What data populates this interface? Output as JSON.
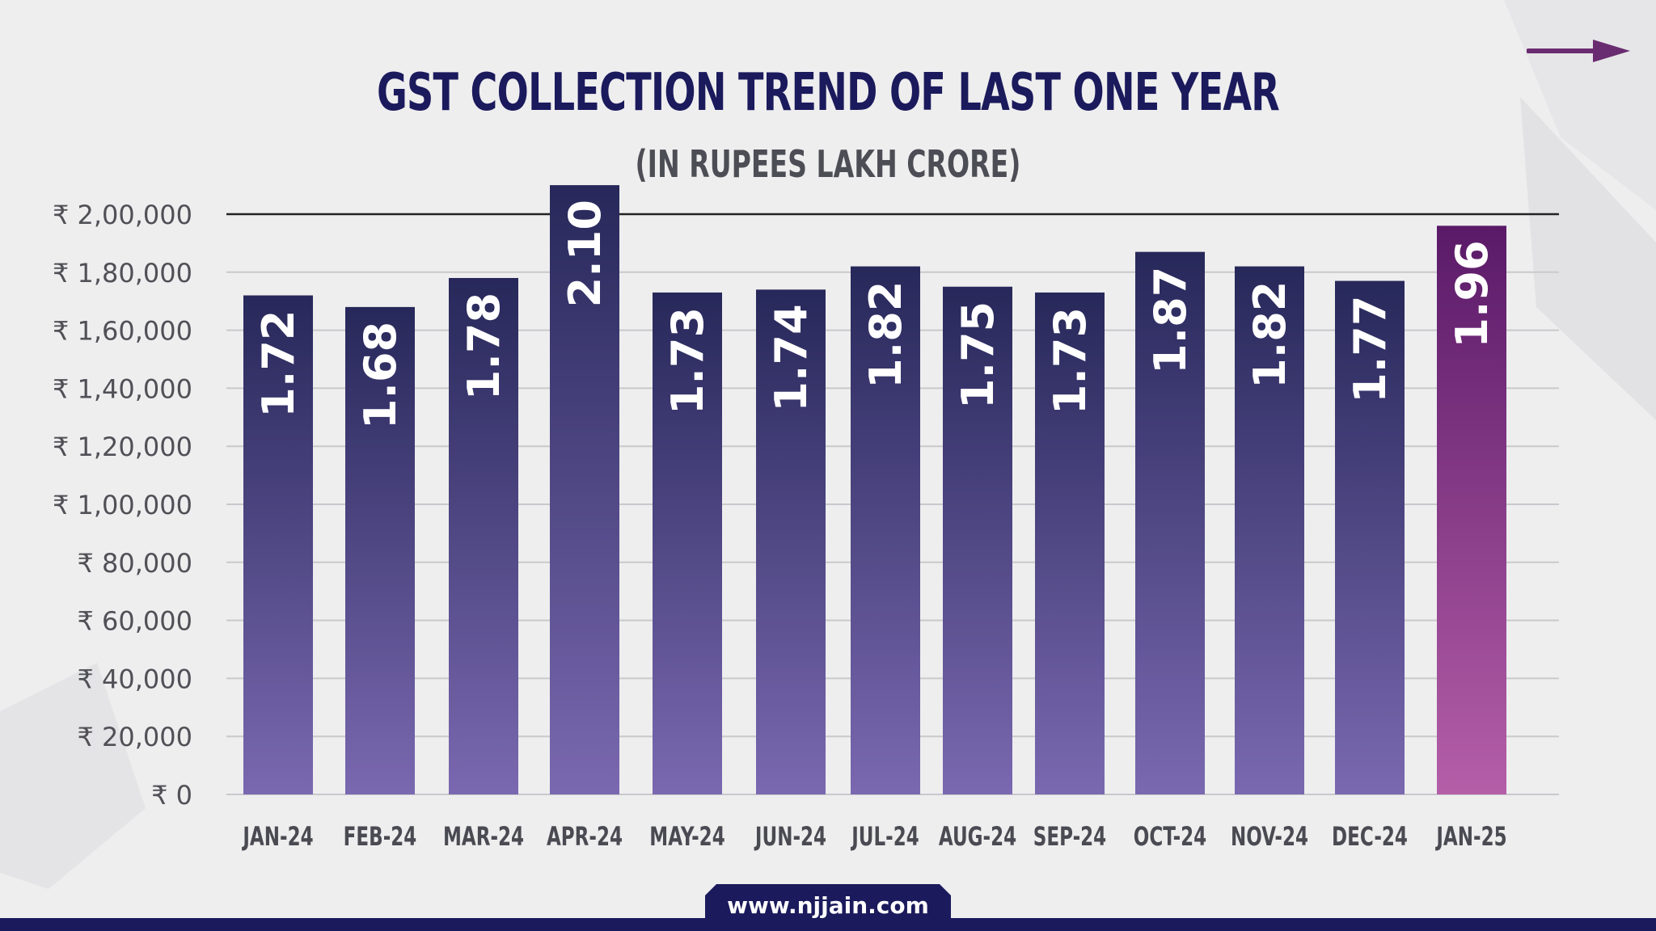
{
  "header": {
    "title": "GST COLLECTION TREND OF LAST ONE YEAR",
    "subtitle": "(IN RUPEES LAKH CRORE)"
  },
  "footer": {
    "site": "www.njjain.com"
  },
  "decor": {
    "arrow_icon": "arrow-right-icon"
  },
  "colors": {
    "bar_top": "#27285a",
    "bar_bottom": "#7a68b0",
    "highlight_top": "#5a1a68",
    "highlight_bottom": "#b55ea8",
    "title": "#1b1a5c",
    "subtitle": "#4d4d55",
    "grid": "#c9c9cc",
    "axis_text": "#505057",
    "brand": "#1b1a5c",
    "arrow": "#6a2c70"
  },
  "chart_data": {
    "type": "bar",
    "title": "GST COLLECTION TREND OF LAST ONE YEAR",
    "subtitle": "(IN RUPEES LAKH CRORE)",
    "categories": [
      "JAN-24",
      "FEB-24",
      "MAR-24",
      "APR-24",
      "MAY-24",
      "JUN-24",
      "JUL-24",
      "AUG-24",
      "SEP-24",
      "OCT-24",
      "NOV-24",
      "DEC-24",
      "JAN-25"
    ],
    "values": [
      172000,
      168000,
      178000,
      210000,
      173000,
      174000,
      182000,
      175000,
      173000,
      187000,
      182000,
      177000,
      196000
    ],
    "data_labels": [
      "1.72",
      "1.68",
      "1.78",
      "2.10",
      "1.73",
      "1.74",
      "1.82",
      "1.75",
      "1.73",
      "1.87",
      "1.82",
      "1.77",
      "1.96"
    ],
    "highlight_index": 12,
    "y_ticks": [
      0,
      20000,
      40000,
      60000,
      80000,
      100000,
      120000,
      140000,
      160000,
      180000,
      200000
    ],
    "y_tick_labels": [
      "₹ 0",
      "₹ 20,000",
      "₹ 40,000",
      "₹ 60,000",
      "₹ 80,000",
      "₹ 1,00,000",
      "₹ 1,20,000",
      "₹ 1,40,000",
      "₹ 1,60,000",
      "₹ 1,80,000",
      "₹ 2,00,000"
    ],
    "ylim": [
      0,
      200000
    ],
    "xlabel": "",
    "ylabel": "",
    "grid": true,
    "legend": "none"
  }
}
